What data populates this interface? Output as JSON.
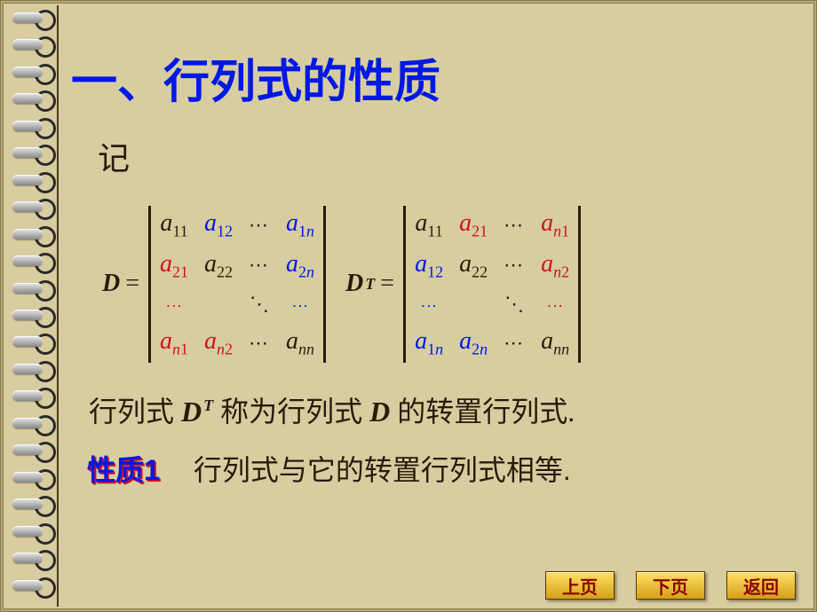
{
  "colors": {
    "background": "#d8cda0",
    "title": "#0018e6",
    "text": "#2a1a0a",
    "red": "#d01020",
    "black": "#2a1a0a",
    "blue": "#0018e6"
  },
  "title": "一、行列式的性质",
  "intro": "记",
  "formula": {
    "D_label": "D",
    "equals": "=",
    "DT_label_base": "D",
    "DT_label_sup": "T",
    "hdots": "⋯",
    "ddots": "⋱",
    "D": {
      "rows": [
        [
          {
            "base": "a",
            "sub": "11",
            "color": "black"
          },
          {
            "base": "a",
            "sub": "12",
            "color": "blue"
          },
          {
            "dots": "h",
            "color": "black"
          },
          {
            "base": "a",
            "subm": "1",
            "subn": "n",
            "color": "blue"
          }
        ],
        [
          {
            "base": "a",
            "sub": "21",
            "color": "red"
          },
          {
            "base": "a",
            "sub": "22",
            "color": "black"
          },
          {
            "dots": "h",
            "color": "black"
          },
          {
            "base": "a",
            "subm": "2",
            "subn": "n",
            "color": "blue"
          }
        ],
        [
          {
            "dots": "v",
            "color": "red"
          },
          {
            "empty": true
          },
          {
            "dots": "d",
            "color": "black"
          },
          {
            "dots": "v",
            "color": "blue"
          }
        ],
        [
          {
            "base": "a",
            "subn": "n",
            "subm": "1",
            "order": "n1",
            "color": "red"
          },
          {
            "base": "a",
            "subn": "n",
            "subm": "2",
            "order": "n2",
            "color": "red"
          },
          {
            "dots": "h",
            "color": "black"
          },
          {
            "base": "a",
            "subnn": "nn",
            "color": "black"
          }
        ]
      ]
    },
    "DT": {
      "rows": [
        [
          {
            "base": "a",
            "sub": "11",
            "color": "black"
          },
          {
            "base": "a",
            "sub": "21",
            "color": "red"
          },
          {
            "dots": "h",
            "color": "black"
          },
          {
            "base": "a",
            "subn": "n",
            "subm": "1",
            "order": "n1",
            "color": "red"
          }
        ],
        [
          {
            "base": "a",
            "sub": "12",
            "color": "blue"
          },
          {
            "base": "a",
            "sub": "22",
            "color": "black"
          },
          {
            "dots": "h",
            "color": "black"
          },
          {
            "base": "a",
            "subn": "n",
            "subm": "2",
            "order": "n2",
            "color": "red"
          }
        ],
        [
          {
            "dots": "v",
            "color": "blue"
          },
          {
            "empty": true
          },
          {
            "dots": "d",
            "color": "black"
          },
          {
            "dots": "v",
            "color": "red"
          }
        ],
        [
          {
            "base": "a",
            "subm": "1",
            "subn": "n",
            "color": "blue"
          },
          {
            "base": "a",
            "subm": "2",
            "subn": "n",
            "color": "blue"
          },
          {
            "dots": "h",
            "color": "black"
          },
          {
            "base": "a",
            "subnn": "nn",
            "color": "black"
          }
        ]
      ]
    }
  },
  "sentence": {
    "p1": "行列式 ",
    "DT_base": "D",
    "DT_sup": "T",
    "p2": " 称为行列式  ",
    "D": "D",
    "p3": "  的转置行列式."
  },
  "property": {
    "label": "性质1",
    "text": "行列式与它的转置行列式相等."
  },
  "nav": {
    "prev": "上页",
    "next": "下页",
    "back": "返回"
  },
  "binding": {
    "ring_count": 22
  }
}
